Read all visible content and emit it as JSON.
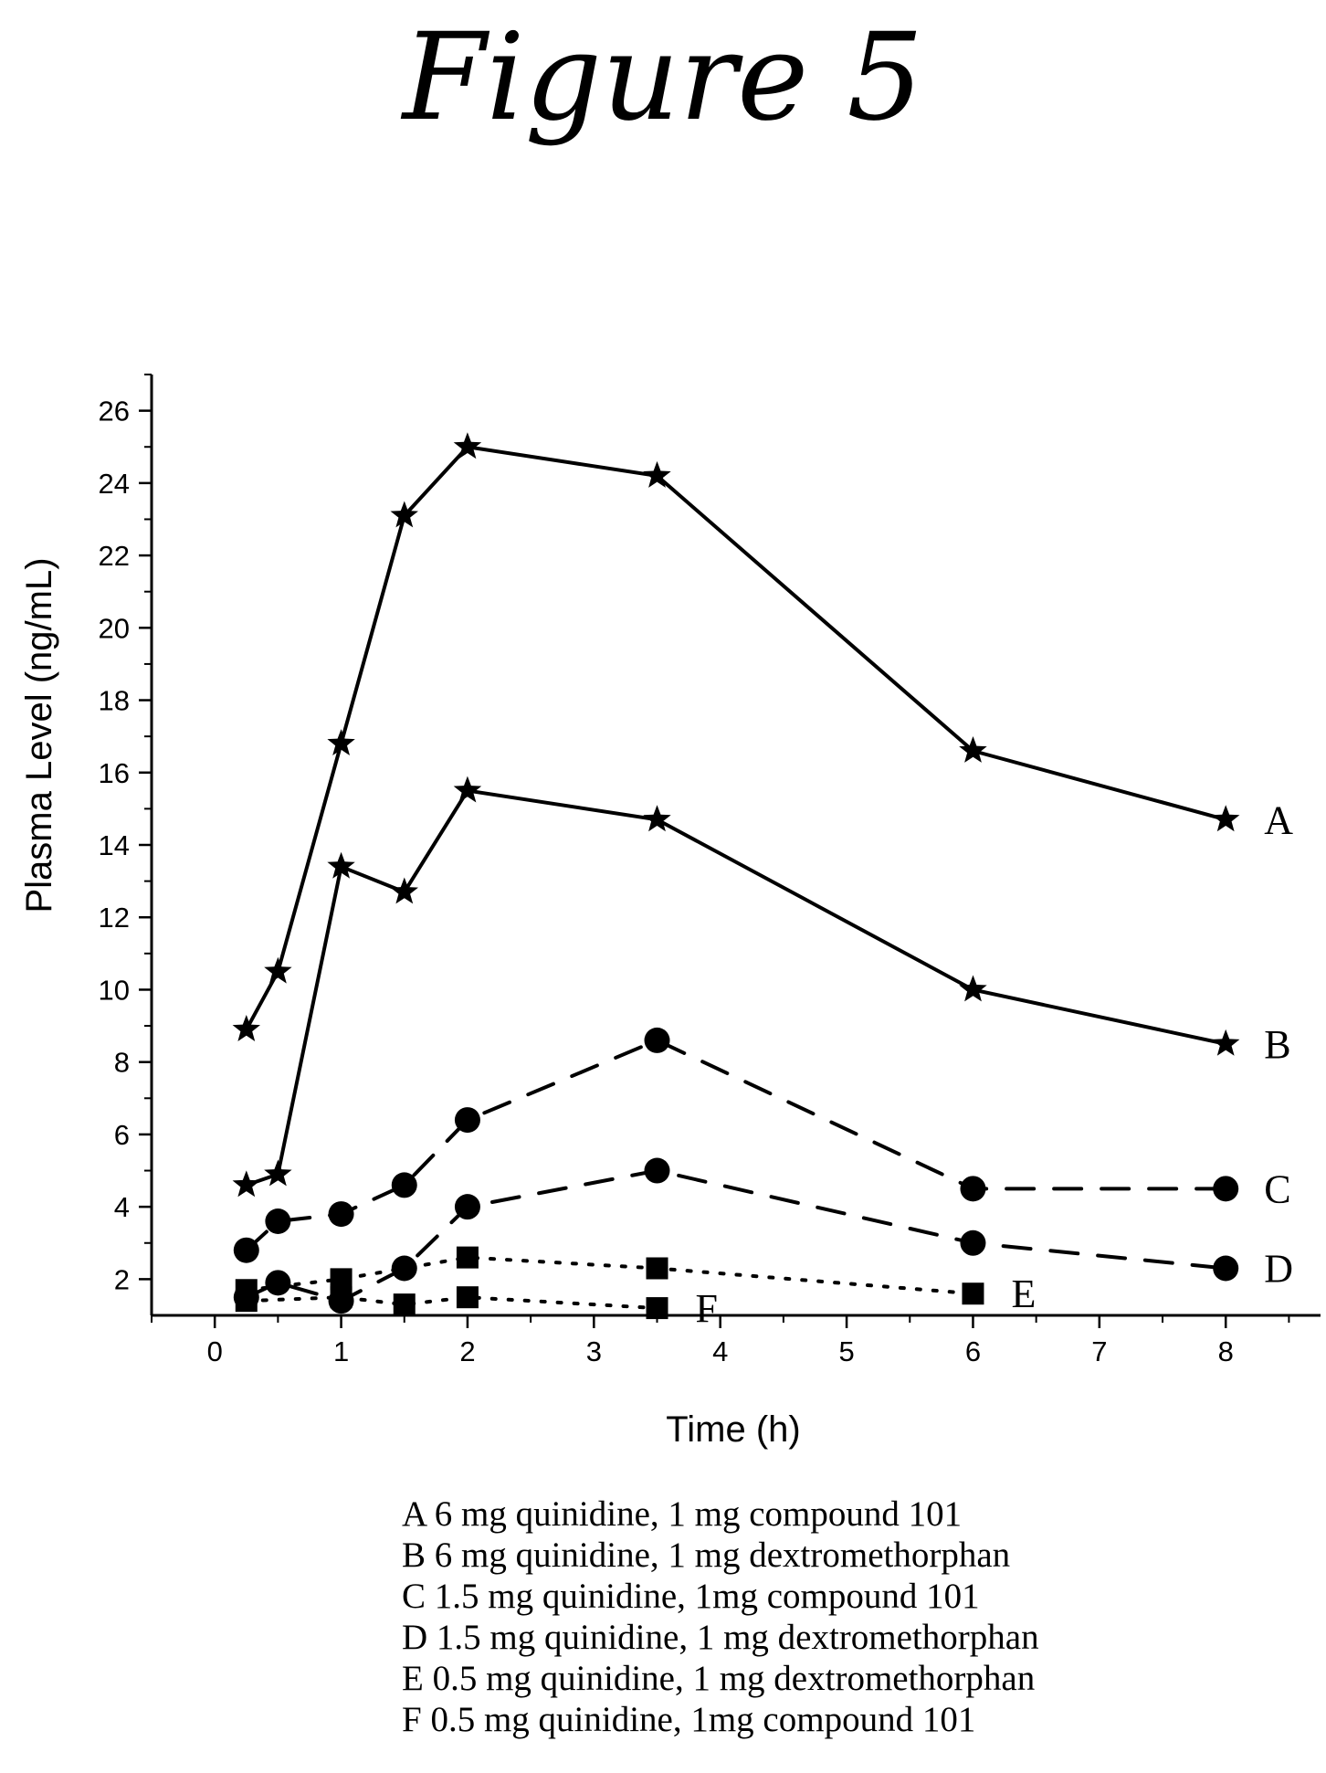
{
  "chart_data": {
    "type": "line",
    "title": "Figure 5",
    "xlabel": "Time (h)",
    "ylabel": "Plasma Level (ng/mL)",
    "xlim": [
      -0.5,
      8.75
    ],
    "ylim": [
      1,
      27
    ],
    "xticks": [
      0,
      1,
      2,
      3,
      4,
      5,
      6,
      7,
      8
    ],
    "yticks": [
      2,
      4,
      6,
      8,
      10,
      12,
      14,
      16,
      18,
      20,
      22,
      24,
      26
    ],
    "series": [
      {
        "name": "A",
        "marker": "star",
        "line": "solid",
        "x": [
          0.25,
          0.5,
          1,
          1.5,
          2,
          3.5,
          6,
          8
        ],
        "y": [
          8.9,
          10.5,
          16.8,
          23.1,
          25.0,
          24.2,
          16.6,
          14.7
        ]
      },
      {
        "name": "B",
        "marker": "star",
        "line": "solid",
        "x": [
          0.25,
          0.5,
          1,
          1.5,
          2,
          3.5,
          6,
          8
        ],
        "y": [
          4.6,
          4.9,
          13.4,
          12.7,
          15.5,
          14.7,
          10.0,
          8.5
        ]
      },
      {
        "name": "C",
        "marker": "circle",
        "line": "dashed",
        "x": [
          0.25,
          0.5,
          1,
          1.5,
          2,
          3.5,
          6,
          8
        ],
        "y": [
          2.8,
          3.6,
          3.8,
          4.6,
          6.4,
          8.6,
          4.5,
          4.5
        ]
      },
      {
        "name": "D",
        "marker": "circle",
        "line": "dashed",
        "x": [
          0.25,
          0.5,
          1,
          1.5,
          2,
          3.5,
          6,
          8
        ],
        "y": [
          1.5,
          1.9,
          1.4,
          2.3,
          4.0,
          5.0,
          3.0,
          2.3
        ]
      },
      {
        "name": "E",
        "marker": "square",
        "line": "dotted",
        "x": [
          0.25,
          1,
          2,
          3.5,
          6
        ],
        "y": [
          1.7,
          2.0,
          2.6,
          2.3,
          1.6
        ]
      },
      {
        "name": "F",
        "marker": "square",
        "line": "dotted",
        "x": [
          0.25,
          1,
          1.5,
          2,
          3.5
        ],
        "y": [
          1.4,
          1.5,
          1.3,
          1.5,
          1.2
        ]
      }
    ],
    "legend": [
      "A 6 mg quinidine, 1 mg compound 101",
      "B 6 mg quinidine, 1 mg dextromethorphan",
      "C 1.5 mg quinidine, 1mg compound 101",
      "D 1.5 mg quinidine, 1 mg dextromethorphan",
      "E  0.5 mg quinidine, 1 mg dextromethorphan",
      "F 0.5 mg quinidine, 1mg compound 101"
    ],
    "legend_placement": "bottom",
    "grid": false
  }
}
